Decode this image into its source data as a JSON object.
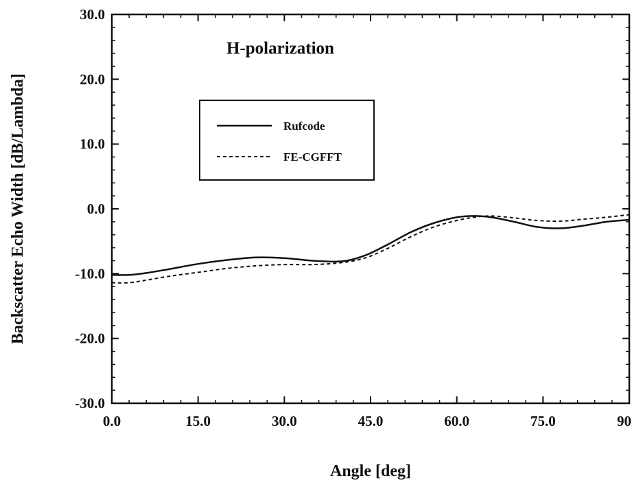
{
  "chart_data": {
    "type": "line",
    "title": "",
    "annotation": "H-polarization",
    "xlabel": "Angle [deg]",
    "ylabel": "Backscatter Echo Width [dB/Lambda]",
    "xlim": [
      0,
      90
    ],
    "ylim": [
      -30,
      30
    ],
    "x_ticks": [
      "0.0",
      "15.0",
      "30.0",
      "45.0",
      "60.0",
      "75.0",
      "90"
    ],
    "y_ticks": [
      "30.0",
      "20.0",
      "10.0",
      "0.0",
      "-10.0",
      "-20.0",
      "-30.0"
    ],
    "grid": false,
    "legend": {
      "placement": "upper-left",
      "entries": [
        "Rufcode",
        "FE-CGFFT"
      ]
    },
    "series": [
      {
        "name": "Rufcode",
        "style": "solid",
        "x": [
          0,
          3,
          6,
          10,
          15,
          20,
          25,
          30,
          35,
          40,
          44,
          48,
          52,
          56,
          60,
          63,
          66,
          70,
          74,
          78,
          82,
          86,
          90
        ],
        "y": [
          -10.2,
          -10.2,
          -9.9,
          -9.3,
          -8.5,
          -7.9,
          -7.5,
          -7.6,
          -8.0,
          -8.1,
          -7.2,
          -5.5,
          -3.6,
          -2.2,
          -1.3,
          -1.1,
          -1.3,
          -2.0,
          -2.8,
          -3.0,
          -2.6,
          -2.0,
          -1.7
        ]
      },
      {
        "name": "FE-CGFFT",
        "style": "dashed",
        "x": [
          0,
          3,
          6,
          10,
          15,
          20,
          25,
          30,
          35,
          40,
          44,
          48,
          52,
          56,
          60,
          63,
          66,
          70,
          74,
          78,
          82,
          86,
          90
        ],
        "y": [
          -11.4,
          -11.4,
          -11.0,
          -10.4,
          -9.8,
          -9.2,
          -8.8,
          -8.6,
          -8.6,
          -8.3,
          -7.6,
          -6.1,
          -4.3,
          -2.8,
          -1.8,
          -1.3,
          -1.1,
          -1.4,
          -1.8,
          -1.9,
          -1.6,
          -1.3,
          -0.9
        ]
      }
    ]
  }
}
